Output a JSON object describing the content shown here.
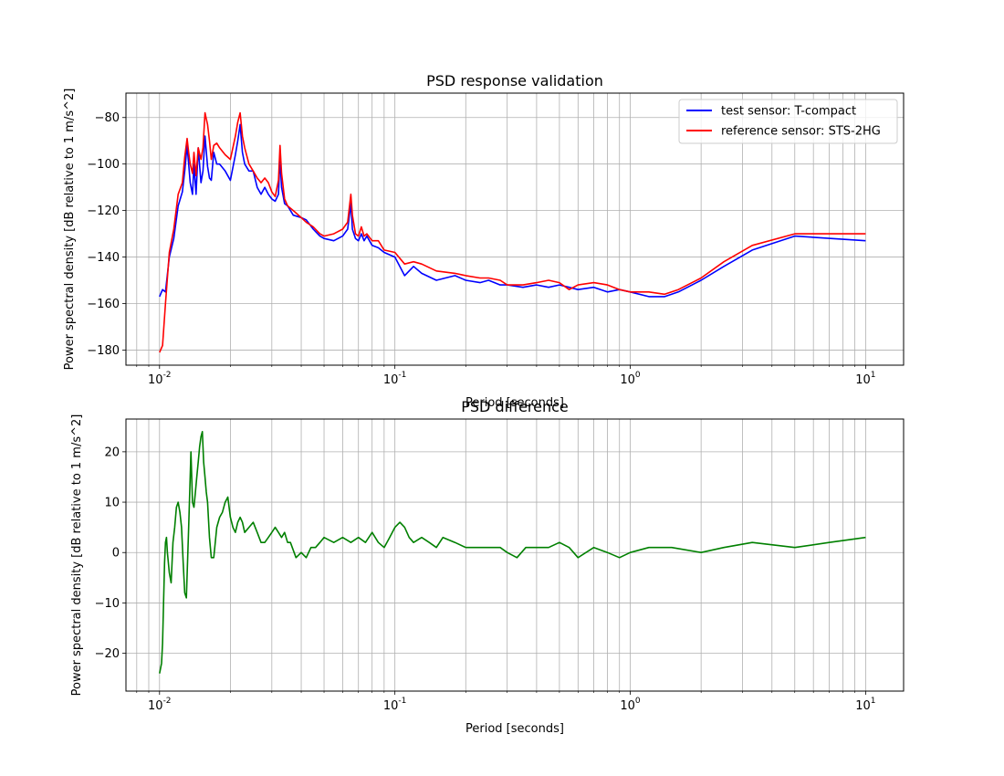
{
  "chart_data": [
    {
      "type": "line",
      "title": "PSD response validation",
      "xlabel": "Period [seconds]",
      "ylabel": "Power spectral density [dB relative to 1 m/s^2]",
      "xscale": "log",
      "xlim": [
        0.0072,
        14.5
      ],
      "ylim": [
        -186.5,
        -69.5
      ],
      "yticks": [
        -180,
        -160,
        -140,
        -120,
        -100,
        -80
      ],
      "grid": true,
      "legend": "top-right",
      "series": [
        {
          "name": "test sensor: T-compact",
          "color": "#0000ff",
          "x": [
            0.01,
            0.0103,
            0.0106,
            0.011,
            0.0115,
            0.012,
            0.0125,
            0.0128,
            0.0131,
            0.0133,
            0.0135,
            0.0138,
            0.014,
            0.0143,
            0.0146,
            0.015,
            0.0153,
            0.0156,
            0.016,
            0.0163,
            0.0166,
            0.017,
            0.0175,
            0.018,
            0.019,
            0.02,
            0.021,
            0.0215,
            0.022,
            0.0225,
            0.023,
            0.024,
            0.025,
            0.026,
            0.027,
            0.028,
            0.029,
            0.03,
            0.031,
            0.032,
            0.0325,
            0.033,
            0.034,
            0.035,
            0.037,
            0.04,
            0.042,
            0.045,
            0.048,
            0.05,
            0.055,
            0.06,
            0.063,
            0.065,
            0.066,
            0.068,
            0.07,
            0.072,
            0.074,
            0.076,
            0.08,
            0.085,
            0.09,
            0.1,
            0.11,
            0.12,
            0.13,
            0.15,
            0.18,
            0.2,
            0.23,
            0.25,
            0.28,
            0.3,
            0.35,
            0.4,
            0.45,
            0.5,
            0.55,
            0.6,
            0.7,
            0.8,
            0.9,
            1.0,
            1.2,
            1.4,
            1.6,
            2.0,
            2.5,
            3.3,
            5.0,
            10.0
          ],
          "y": [
            -157,
            -154,
            -155,
            -140,
            -132,
            -118,
            -112,
            -103,
            -92,
            -100,
            -108,
            -113,
            -100,
            -113,
            -93,
            -108,
            -103,
            -88,
            -101,
            -106,
            -107,
            -95,
            -100,
            -100,
            -103,
            -107,
            -96,
            -90,
            -83,
            -95,
            -100,
            -103,
            -103,
            -110,
            -113,
            -110,
            -113,
            -115,
            -116,
            -113,
            -97,
            -110,
            -117,
            -118,
            -122,
            -123,
            -124,
            -128,
            -131,
            -132,
            -133,
            -131,
            -128,
            -117,
            -128,
            -132,
            -133,
            -130,
            -133,
            -131,
            -135,
            -136,
            -138,
            -140,
            -148,
            -144,
            -147,
            -150,
            -148,
            -150,
            -151,
            -150,
            -152,
            -152,
            -153,
            -152,
            -153,
            -152,
            -153,
            -154,
            -153,
            -155,
            -154,
            -155,
            -157,
            -157,
            -155,
            -150,
            -144,
            -137,
            -131,
            -133
          ]
        },
        {
          "name": "reference sensor: STS-2HG",
          "color": "#ff0000",
          "x": [
            0.01,
            0.0103,
            0.0106,
            0.011,
            0.0115,
            0.012,
            0.0125,
            0.0128,
            0.0131,
            0.0133,
            0.0135,
            0.0138,
            0.014,
            0.0143,
            0.0146,
            0.015,
            0.0153,
            0.0156,
            0.016,
            0.0163,
            0.0166,
            0.017,
            0.0175,
            0.018,
            0.019,
            0.02,
            0.021,
            0.0215,
            0.022,
            0.0225,
            0.023,
            0.024,
            0.025,
            0.026,
            0.027,
            0.028,
            0.029,
            0.03,
            0.031,
            0.032,
            0.0325,
            0.033,
            0.034,
            0.035,
            0.037,
            0.04,
            0.042,
            0.045,
            0.048,
            0.05,
            0.055,
            0.06,
            0.063,
            0.065,
            0.066,
            0.068,
            0.07,
            0.072,
            0.074,
            0.076,
            0.08,
            0.085,
            0.09,
            0.1,
            0.11,
            0.12,
            0.13,
            0.15,
            0.18,
            0.2,
            0.23,
            0.25,
            0.28,
            0.3,
            0.35,
            0.4,
            0.45,
            0.5,
            0.55,
            0.6,
            0.7,
            0.8,
            0.9,
            1.0,
            1.2,
            1.4,
            1.6,
            2.0,
            2.5,
            3.3,
            5.0,
            10.0
          ],
          "y": [
            -181,
            -178,
            -160,
            -138,
            -128,
            -113,
            -108,
            -97,
            -89,
            -95,
            -100,
            -104,
            -95,
            -105,
            -93,
            -98,
            -93,
            -78,
            -83,
            -90,
            -98,
            -92,
            -91,
            -93,
            -96,
            -98,
            -88,
            -82,
            -78,
            -88,
            -93,
            -100,
            -103,
            -106,
            -108,
            -106,
            -108,
            -112,
            -114,
            -107,
            -92,
            -104,
            -115,
            -118,
            -120,
            -123,
            -125,
            -127,
            -130,
            -131,
            -130,
            -128,
            -125,
            -113,
            -122,
            -130,
            -131,
            -127,
            -131,
            -130,
            -133,
            -133,
            -137,
            -138,
            -143,
            -142,
            -143,
            -146,
            -147,
            -148,
            -149,
            -149,
            -150,
            -152,
            -152,
            -151,
            -150,
            -151,
            -154,
            -152,
            -151,
            -152,
            -154,
            -155,
            -155,
            -156,
            -154,
            -149,
            -142,
            -135,
            -130,
            -130
          ]
        }
      ]
    },
    {
      "type": "line",
      "title": "PSD difference",
      "xlabel": "Period [seconds]",
      "ylabel": "Power spectral density [dB relative to 1 m/s^2]",
      "xscale": "log",
      "xlim": [
        0.0072,
        14.5
      ],
      "ylim": [
        -27.5,
        26.5
      ],
      "yticks": [
        -20,
        -10,
        0,
        10,
        20
      ],
      "grid": true,
      "series": [
        {
          "name": "",
          "color": "#008000",
          "x": [
            0.01,
            0.0101,
            0.0102,
            0.0103,
            0.0104,
            0.0105,
            0.0106,
            0.0107,
            0.0108,
            0.011,
            0.0112,
            0.0114,
            0.0116,
            0.0118,
            0.012,
            0.0122,
            0.0124,
            0.0126,
            0.0128,
            0.013,
            0.0133,
            0.0136,
            0.0138,
            0.014,
            0.0142,
            0.0144,
            0.0146,
            0.0148,
            0.015,
            0.0152,
            0.0154,
            0.0156,
            0.0158,
            0.016,
            0.0163,
            0.0166,
            0.017,
            0.0175,
            0.018,
            0.0185,
            0.019,
            0.0195,
            0.02,
            0.0205,
            0.021,
            0.0215,
            0.022,
            0.0225,
            0.023,
            0.024,
            0.025,
            0.026,
            0.027,
            0.028,
            0.029,
            0.03,
            0.031,
            0.032,
            0.033,
            0.034,
            0.035,
            0.036,
            0.038,
            0.04,
            0.042,
            0.044,
            0.046,
            0.048,
            0.05,
            0.055,
            0.06,
            0.065,
            0.07,
            0.075,
            0.08,
            0.085,
            0.09,
            0.095,
            0.1,
            0.105,
            0.11,
            0.115,
            0.12,
            0.13,
            0.14,
            0.15,
            0.16,
            0.18,
            0.2,
            0.22,
            0.25,
            0.28,
            0.3,
            0.33,
            0.36,
            0.4,
            0.45,
            0.5,
            0.55,
            0.6,
            0.7,
            0.8,
            0.9,
            1.0,
            1.2,
            1.5,
            2.0,
            2.5,
            3.3,
            5.0,
            7.0,
            10.0
          ],
          "y": [
            -24,
            -23,
            -22,
            -18,
            -10,
            -2,
            2,
            3,
            0,
            -4,
            -6,
            2,
            5,
            9,
            10,
            8,
            5,
            -2,
            -8,
            -9,
            5,
            20,
            10,
            9,
            12,
            15,
            18,
            21,
            23,
            24,
            18,
            15,
            12,
            10,
            3,
            -1,
            -1,
            5,
            7,
            8,
            10,
            11,
            7,
            5,
            4,
            6,
            7,
            6,
            4,
            5,
            6,
            4,
            2,
            2,
            3,
            4,
            5,
            4,
            3,
            4,
            2,
            2,
            -1,
            0,
            -1,
            1,
            1,
            2,
            3,
            2,
            3,
            2,
            3,
            2,
            4,
            2,
            1,
            3,
            5,
            6,
            5,
            3,
            2,
            3,
            2,
            1,
            3,
            2,
            1,
            1,
            1,
            1,
            0,
            -1,
            1,
            1,
            1,
            2,
            1,
            -1,
            1,
            0,
            -1,
            0,
            1,
            1,
            0,
            1,
            2,
            1,
            2,
            3
          ]
        }
      ]
    }
  ]
}
